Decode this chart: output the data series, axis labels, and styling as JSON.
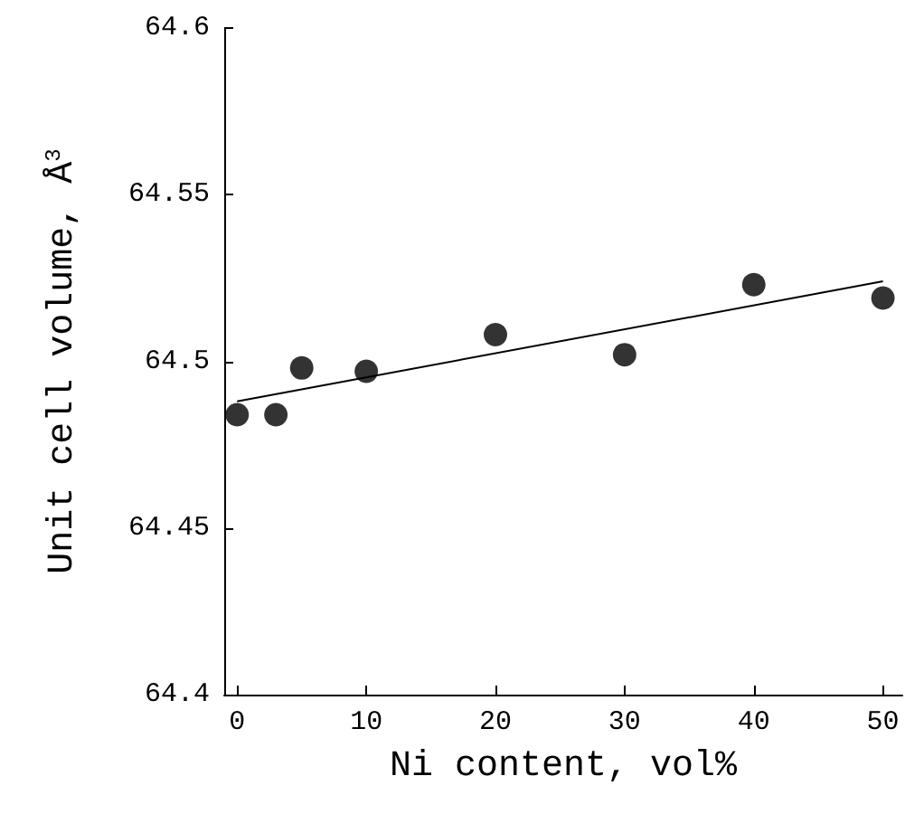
{
  "chart_data": {
    "type": "scatter",
    "xlabel": "Ni content, vol%",
    "ylabel": "Unit cell volume, Å$^{3}$",
    "x": [
      0,
      3,
      5,
      10,
      20,
      30,
      40,
      50
    ],
    "series": [
      {
        "color": "#000000",
        "values": [
          64.484,
          64.484,
          64.498,
          64.497,
          64.508,
          64.502,
          64.523,
          64.519
        ]
      },
      {
        "type": "line",
        "color": "#000000",
        "x": [
          0,
          50
        ],
        "values": [
          64.488,
          64.524
        ],
        "marker": "none"
      }
    ],
    "xlim": [
      -1,
      51.5
    ],
    "xticks": [
      0,
      10,
      20,
      30,
      40,
      50
    ],
    "ylim": [
      64.4,
      64.6
    ],
    "yticks": [
      64.4,
      64.45,
      64.5,
      64.55,
      64.6
    ],
    "grid": false,
    "marker": "circle",
    "line_style": "solid"
  }
}
